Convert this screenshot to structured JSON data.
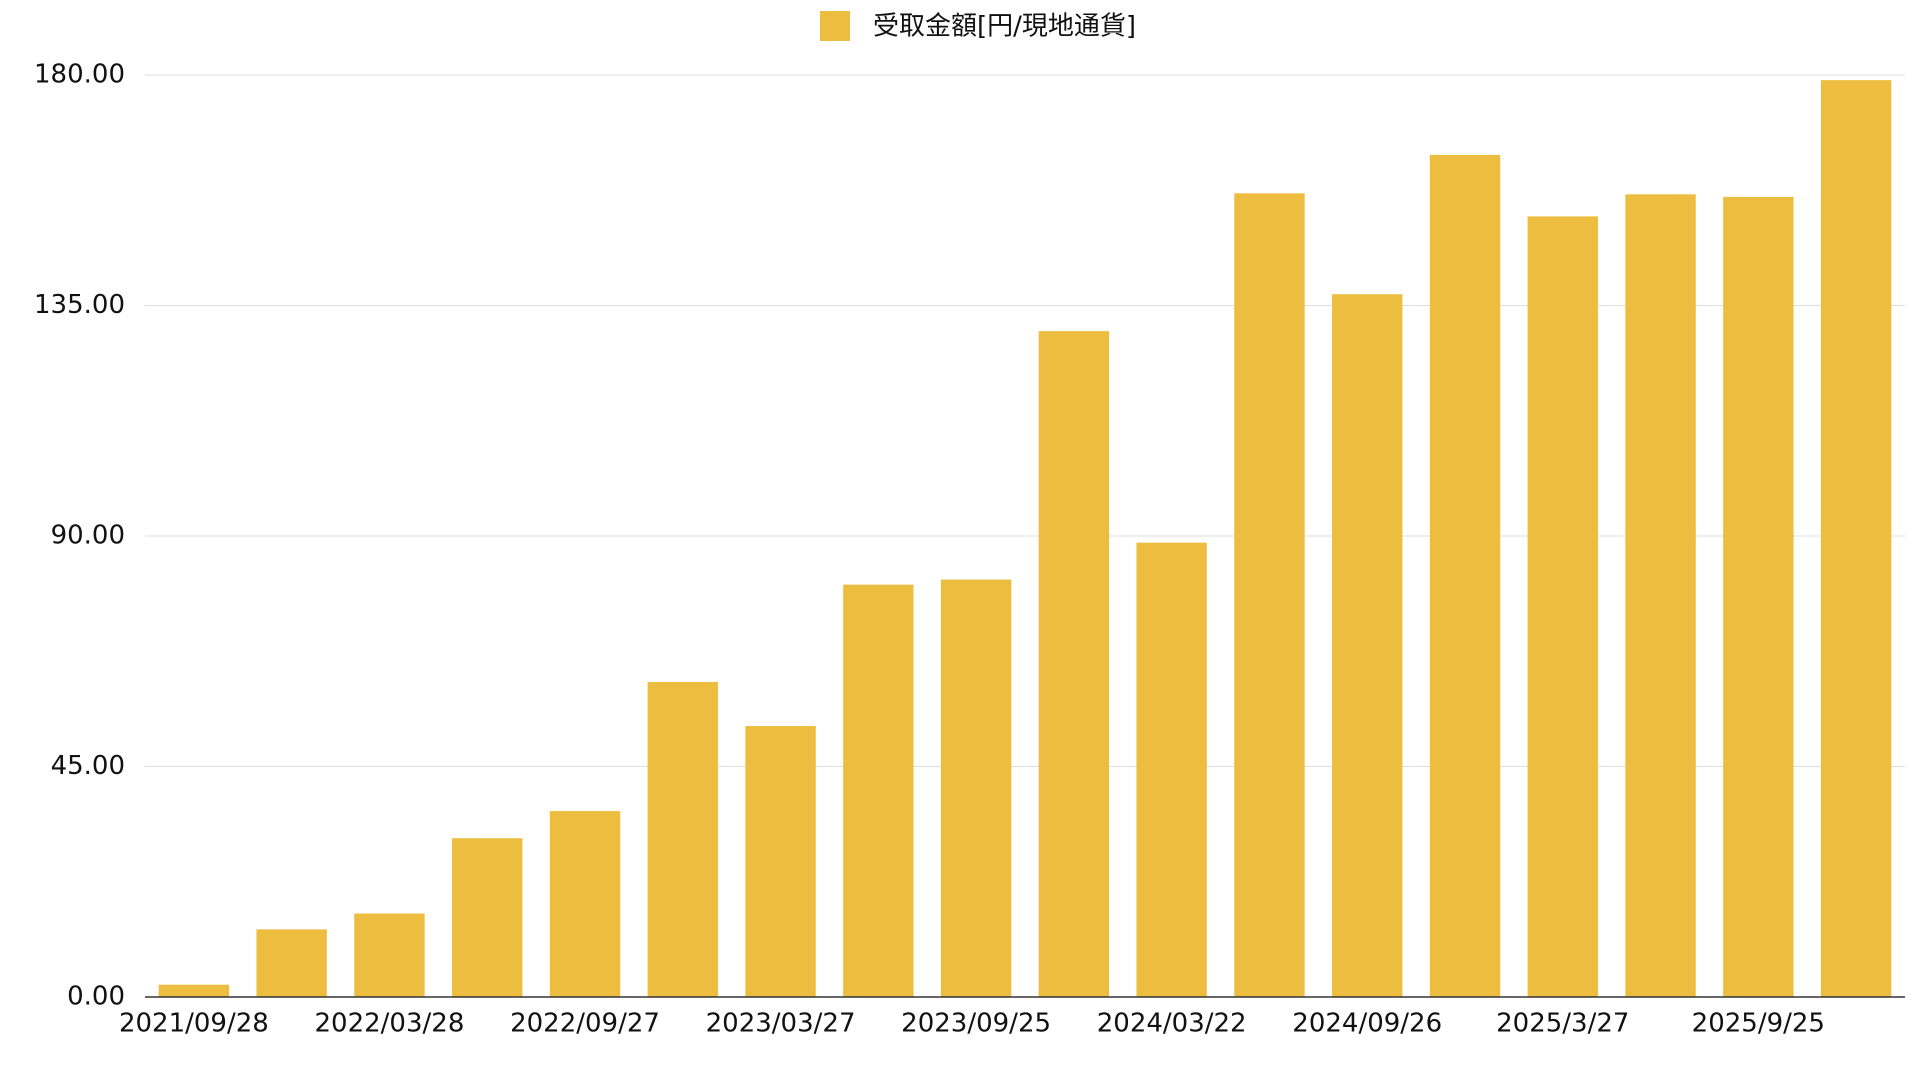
{
  "chart_data": {
    "type": "bar",
    "series": [
      {
        "name": "受取金額[円/現地通貨]",
        "color": "#edbd40",
        "values": [
          2.4,
          13.2,
          16.3,
          31.0,
          36.3,
          61.5,
          52.9,
          80.5,
          81.5,
          130.0,
          88.7,
          156.9,
          137.2,
          164.4,
          152.4,
          156.7,
          156.2,
          179.0
        ]
      }
    ],
    "categories": [
      "2021/09/28",
      null,
      "2022/03/28",
      null,
      "2022/09/27",
      null,
      "2023/03/27",
      null,
      "2023/09/25",
      null,
      "2024/03/22",
      null,
      "2024/09/26",
      null,
      "2025/3/27",
      null,
      "2025/9/25",
      null
    ],
    "ylim": [
      0,
      180
    ],
    "yticks": [
      {
        "value": 0,
        "label": "0.00"
      },
      {
        "value": 45,
        "label": "45.00"
      },
      {
        "value": 90,
        "label": "90.00"
      },
      {
        "value": 135,
        "label": "135.00"
      },
      {
        "value": 180,
        "label": "180.00"
      }
    ],
    "grid": true,
    "legend": "top"
  }
}
